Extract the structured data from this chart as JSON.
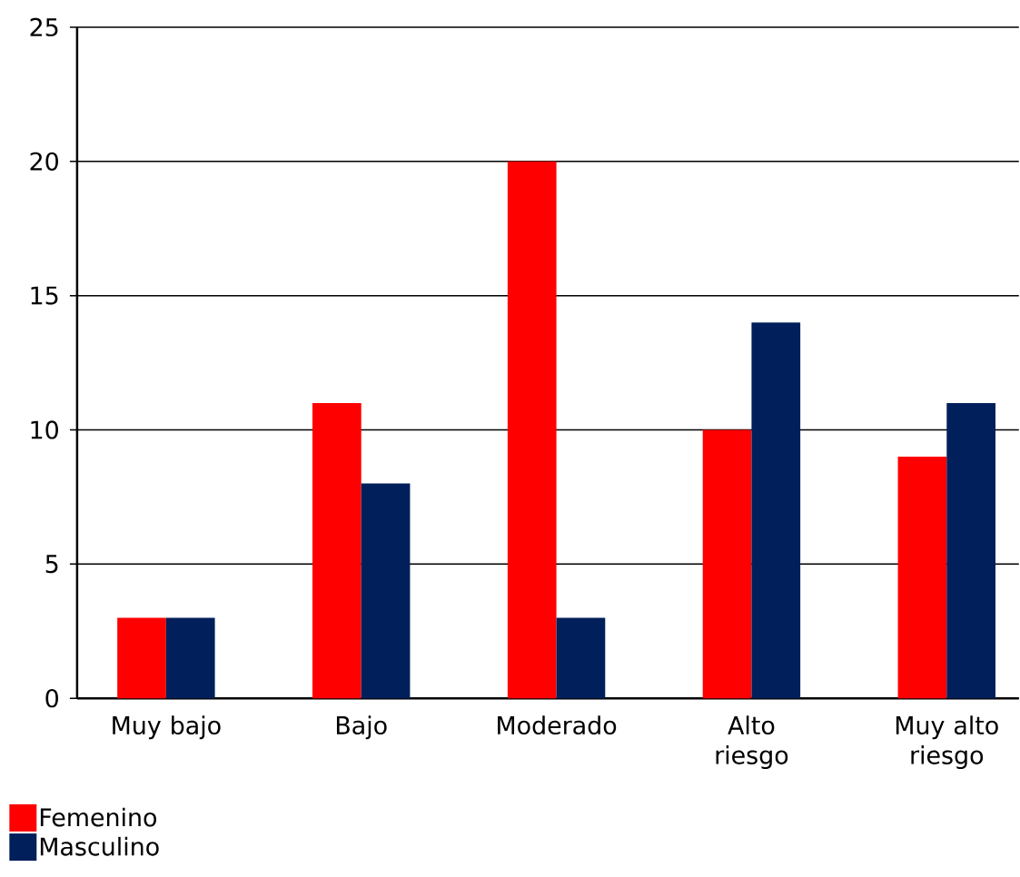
{
  "chart_data": {
    "type": "bar",
    "categories": [
      "Muy bajo",
      "Bajo",
      "Moderado",
      "Alto riesgo",
      "Muy alto riesgo"
    ],
    "series": [
      {
        "name": "Femenino",
        "color": "#ff0000",
        "values": [
          3,
          11,
          20,
          10,
          9
        ]
      },
      {
        "name": "Masculino",
        "color": "#001f5b",
        "values": [
          3,
          8,
          3,
          14,
          11
        ]
      }
    ],
    "ylim": [
      0,
      25
    ],
    "yticks": [
      0,
      5,
      10,
      15,
      20,
      25
    ],
    "grid": "y",
    "legend": "bottom left"
  }
}
